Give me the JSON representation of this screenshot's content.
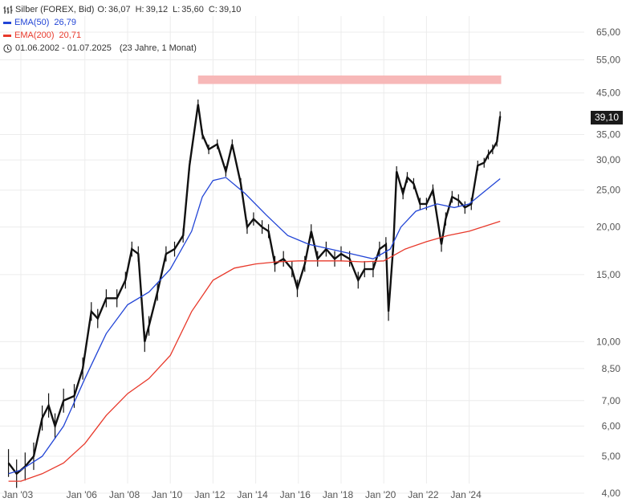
{
  "legend": {
    "instrument": "Silber (FOREX, Bid)",
    "open_label": "O:",
    "open": "36,07",
    "high_label": "H:",
    "high": "39,12",
    "low_label": "L:",
    "low": "35,60",
    "close_label": "C:",
    "close": "39,10",
    "ema50_label": "EMA(50)",
    "ema50_value": "26,79",
    "ema200_label": "EMA(200)",
    "ema200_value": "20,71",
    "range": "01.06.2002 - 01.07.2025",
    "duration": "(23 Jahre, 1 Monat)"
  },
  "last_price_badge": "39,10",
  "colors": {
    "price": "#111111",
    "ema50": "#2245d6",
    "ema200": "#e8392b",
    "resistance_band": "#f7b8b8",
    "grid": "#ececec"
  },
  "chart_data": {
    "type": "line",
    "y_scale": "log",
    "ylim": [
      4,
      70
    ],
    "xlim": [
      2002.42,
      2025.5
    ],
    "grid": true,
    "y_ticks": [
      {
        "value": 4,
        "label": "4,00"
      },
      {
        "value": 5,
        "label": "5,00"
      },
      {
        "value": 6,
        "label": "6,00"
      },
      {
        "value": 7,
        "label": "7,00"
      },
      {
        "value": 8.5,
        "label": "8,50"
      },
      {
        "value": 10,
        "label": "10,00"
      },
      {
        "value": 15,
        "label": "15,00"
      },
      {
        "value": 20,
        "label": "20,00"
      },
      {
        "value": 25,
        "label": "25,00"
      },
      {
        "value": 30,
        "label": "30,00"
      },
      {
        "value": 35,
        "label": "35,00"
      },
      {
        "value": 45,
        "label": "45,00"
      },
      {
        "value": 55,
        "label": "55,00"
      },
      {
        "value": 65,
        "label": "65,00"
      }
    ],
    "x_ticks": [
      {
        "value": 2003,
        "label": "Jan '03"
      },
      {
        "value": 2006,
        "label": "Jan '06"
      },
      {
        "value": 2008,
        "label": "Jan '08"
      },
      {
        "value": 2010,
        "label": "Jan '10"
      },
      {
        "value": 2012,
        "label": "Jan '12"
      },
      {
        "value": 2014,
        "label": "Jan '14"
      },
      {
        "value": 2016,
        "label": "Jan '16"
      },
      {
        "value": 2018,
        "label": "Jan '18"
      },
      {
        "value": 2020,
        "label": "Jan '20"
      },
      {
        "value": 2022,
        "label": "Jan '22"
      },
      {
        "value": 2024,
        "label": "Jan '24"
      }
    ],
    "resistance_band": {
      "x_start": 2011.3,
      "x_end": 2025.5,
      "y_low": 47.5,
      "y_high": 50.0
    },
    "series": [
      {
        "name": "Silber (FOREX, Bid)",
        "style": "bar",
        "x": [
          2002.42,
          2002.8,
          2003.2,
          2003.6,
          2004.0,
          2004.3,
          2004.6,
          2005.0,
          2005.5,
          2005.9,
          2006.3,
          2006.6,
          2007.0,
          2007.5,
          2007.9,
          2008.2,
          2008.5,
          2008.8,
          2009.0,
          2009.4,
          2009.8,
          2010.2,
          2010.6,
          2010.9,
          2011.3,
          2011.5,
          2011.8,
          2012.2,
          2012.6,
          2012.9,
          2013.3,
          2013.6,
          2013.9,
          2014.3,
          2014.6,
          2014.9,
          2015.3,
          2015.7,
          2015.95,
          2016.3,
          2016.6,
          2016.9,
          2017.3,
          2017.7,
          2018.0,
          2018.4,
          2018.8,
          2019.1,
          2019.5,
          2019.8,
          2020.1,
          2020.22,
          2020.45,
          2020.6,
          2020.9,
          2021.1,
          2021.4,
          2021.7,
          2022.0,
          2022.3,
          2022.7,
          2022.9,
          2023.2,
          2023.5,
          2023.8,
          2024.1,
          2024.4,
          2024.7,
          2024.9,
          2025.1,
          2025.3,
          2025.45
        ],
        "y": [
          4.8,
          4.5,
          4.7,
          5.0,
          6.3,
          6.8,
          6.0,
          7.0,
          7.2,
          8.5,
          12.0,
          11.5,
          13.0,
          13.0,
          14.5,
          17.5,
          17.0,
          10.0,
          11.0,
          13.5,
          17.0,
          17.5,
          19.0,
          29.0,
          42.0,
          35.0,
          32.0,
          33.0,
          28.0,
          33.0,
          26.0,
          20.0,
          21.0,
          20.0,
          19.5,
          16.0,
          16.5,
          15.5,
          13.8,
          16.0,
          19.5,
          16.5,
          17.5,
          16.5,
          17.0,
          16.5,
          14.5,
          15.5,
          15.5,
          17.5,
          18.0,
          12.0,
          18.0,
          28.0,
          24.5,
          27.0,
          26.0,
          23.0,
          23.0,
          25.0,
          18.0,
          21.0,
          24.0,
          23.5,
          22.5,
          23.0,
          29.0,
          29.5,
          31.0,
          32.0,
          33.5,
          39.1
        ]
      },
      {
        "name": "EMA(50)",
        "style": "line",
        "x": [
          2002.42,
          2003.0,
          2004.0,
          2005.0,
          2006.0,
          2007.0,
          2008.0,
          2009.0,
          2010.0,
          2011.0,
          2011.5,
          2012.0,
          2012.6,
          2013.5,
          2014.5,
          2015.5,
          2016.5,
          2017.5,
          2018.5,
          2019.5,
          2020.3,
          2020.8,
          2021.5,
          2022.5,
          2023.3,
          2024.0,
          2024.6,
          2025.45
        ],
        "y": [
          4.5,
          4.6,
          5.0,
          6.0,
          8.0,
          10.5,
          12.5,
          13.5,
          15.5,
          19.5,
          24.0,
          26.5,
          27.0,
          24.5,
          21.5,
          19.0,
          18.0,
          17.5,
          17.0,
          16.5,
          17.5,
          20.0,
          22.0,
          23.0,
          22.5,
          23.0,
          24.5,
          26.79
        ]
      },
      {
        "name": "EMA(200)",
        "style": "line",
        "x": [
          2002.42,
          2003.0,
          2004.0,
          2005.0,
          2006.0,
          2007.0,
          2008.0,
          2009.0,
          2010.0,
          2011.0,
          2012.0,
          2013.0,
          2014.0,
          2015.0,
          2016.0,
          2017.0,
          2018.0,
          2019.0,
          2020.0,
          2021.0,
          2022.0,
          2023.0,
          2024.0,
          2025.45
        ],
        "y": [
          4.3,
          4.3,
          4.5,
          4.8,
          5.4,
          6.4,
          7.3,
          8.0,
          9.2,
          12.0,
          14.5,
          15.6,
          16.0,
          16.2,
          16.3,
          16.3,
          16.3,
          16.2,
          16.3,
          17.5,
          18.3,
          19.0,
          19.5,
          20.71
        ]
      }
    ]
  }
}
